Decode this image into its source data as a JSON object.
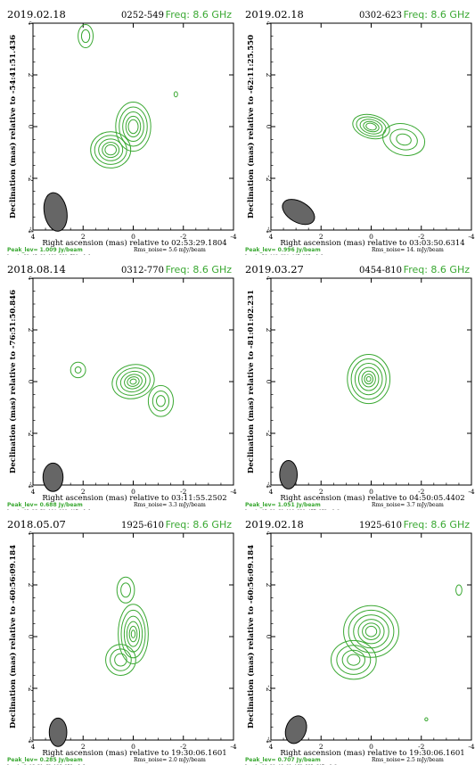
{
  "chart_data": [
    {
      "type": "contour",
      "date": "2019.02.18",
      "source": "0252-549",
      "freq": "Freq: 8.6 GHz",
      "ylabel": "Declination (mas) relative to -54:41:51.436",
      "xlabel": "Right ascension (mas) relative to 02:53:29.1804",
      "peak": "Peak_lev=   1.009 Jy/beam",
      "rms": "Rms_noise=   5.6 mJy/beam",
      "levels": "Levels:  32,  45,  90, 180, 360, 730 mJy/beam",
      "xticks": [
        "4",
        "2",
        "0",
        "-2",
        "-4"
      ],
      "yticks": [
        "4",
        "2",
        "0",
        "-2",
        "-4"
      ],
      "xlim": [
        4,
        -4
      ],
      "ylim": [
        -4,
        4
      ],
      "beam": {
        "x": 3.1,
        "y": -3.3,
        "w": 0.45,
        "h": 0.75,
        "angle": -10
      },
      "components": [
        {
          "x": 0.0,
          "y": 0.0,
          "w": 0.7,
          "h": 0.95,
          "angle": 0,
          "levels": [
            1.0,
            0.8,
            0.6,
            0.42,
            0.28
          ]
        },
        {
          "x": 0.9,
          "y": -0.9,
          "w": 0.8,
          "h": 0.7,
          "angle": 0,
          "levels": [
            1.0,
            0.8,
            0.6,
            0.42,
            0.28
          ]
        },
        {
          "x": 1.9,
          "y": 3.5,
          "w": 0.3,
          "h": 0.45,
          "angle": 0,
          "levels": [
            1.0,
            0.55
          ]
        },
        {
          "x": -1.7,
          "y": 1.25,
          "w": 0.07,
          "h": 0.1,
          "angle": 0,
          "levels": [
            1.0
          ]
        }
      ]
    },
    {
      "type": "contour",
      "date": "2019.02.18",
      "source": "0302-623",
      "freq": "Freq: 8.6 GHz",
      "ylabel": "Declination (mas) relative to -62:11:25.550",
      "xlabel": "Right ascension (mas) relative to 03:03:50.6314",
      "peak": "Peak_lev=   0.996 Jy/beam",
      "rms": "Rms_noise=   14. mJy/beam",
      "levels": "Levels:  56, 112, 224, 447, 895 mJy/beam",
      "xticks": [
        "4",
        "2",
        "0",
        "-2",
        "-4"
      ],
      "yticks": [
        "4",
        "2",
        "0",
        "-2",
        "-4"
      ],
      "xlim": [
        4,
        -4
      ],
      "ylim": [
        -4,
        4
      ],
      "beam": {
        "x": 2.9,
        "y": -3.3,
        "w": 0.7,
        "h": 0.4,
        "angle": 30
      },
      "components": [
        {
          "x": 0.0,
          "y": 0.0,
          "w": 0.75,
          "h": 0.45,
          "angle": 15,
          "levels": [
            1.0,
            0.8,
            0.6,
            0.42,
            0.28
          ]
        },
        {
          "x": -1.3,
          "y": -0.5,
          "w": 0.85,
          "h": 0.6,
          "angle": 15,
          "levels": [
            1.0,
            0.65,
            0.35
          ]
        }
      ]
    },
    {
      "type": "contour",
      "date": "2018.08.14",
      "source": "0312-770",
      "freq": "Freq: 8.6 GHz",
      "ylabel": "Declination (mas) relative to -76:51:50.846",
      "xlabel": "Right ascension (mas) relative to 03:11:55.2502",
      "peak": "Peak_lev=   0.688 Jy/beam",
      "rms": "Rms_noise=   3.3 mJy/beam",
      "levels": "Levels:  13,  26,  52, 104, 208, 417 mJy/beam",
      "xticks": [
        "4",
        "2",
        "0",
        "-2",
        "-4"
      ],
      "yticks": [
        "4",
        "2",
        "0",
        "-2",
        "-4"
      ],
      "xlim": [
        4,
        -4
      ],
      "ylim": [
        -4,
        4
      ],
      "beam": {
        "x": 3.2,
        "y": -3.7,
        "w": 0.4,
        "h": 0.55,
        "angle": 0
      },
      "components": [
        {
          "x": 0.0,
          "y": 0.0,
          "w": 0.85,
          "h": 0.65,
          "angle": -15,
          "levels": [
            1.0,
            0.8,
            0.6,
            0.42,
            0.28,
            0.15
          ]
        },
        {
          "x": -1.1,
          "y": -0.75,
          "w": 0.5,
          "h": 0.6,
          "angle": 0,
          "levels": [
            1.0,
            0.65,
            0.35
          ]
        },
        {
          "x": 2.2,
          "y": 0.45,
          "w": 0.3,
          "h": 0.3,
          "angle": 0,
          "levels": [
            1.0,
            0.4
          ]
        }
      ]
    },
    {
      "type": "contour",
      "date": "2019.03.27",
      "source": "0454-810",
      "freq": "Freq: 8.6 GHz",
      "ylabel": "Declination (mas) relative to -81:01:02.231",
      "xlabel": "Right ascension (mas) relative to 04:50:05.4402",
      "peak": "Peak_lev=   1.051 Jy/beam",
      "rms": "Rms_noise=   3.7 mJy/beam",
      "levels": "Levels:  15,  30,  60, 119, 238, 477, 953 mJy/beam",
      "xticks": [
        "4",
        "2",
        "0",
        "-2",
        "-4"
      ],
      "yticks": [
        "4",
        "2",
        "0",
        "-2",
        "-4"
      ],
      "xlim": [
        4,
        -4
      ],
      "ylim": [
        -4,
        4
      ],
      "beam": {
        "x": 3.3,
        "y": -3.6,
        "w": 0.35,
        "h": 0.55,
        "angle": 0
      },
      "components": [
        {
          "x": 0.1,
          "y": 0.1,
          "w": 0.85,
          "h": 0.95,
          "angle": 0,
          "levels": [
            1.0,
            0.82,
            0.64,
            0.47,
            0.32,
            0.2,
            0.1
          ]
        }
      ]
    },
    {
      "type": "contour",
      "date": "2018.05.07",
      "source": "1925-610",
      "freq": "Freq: 8.6 GHz",
      "ylabel": "Declination (mas) relative to -60:56:09.184",
      "xlabel": "Right ascension (mas) relative to 19:30:06.1601",
      "peak": "Peak_lev=   0.285 Jy/beam",
      "rms": "Rms_noise=   2.0 mJy/beam",
      "levels": "Levels:   8,  16,  31,  63, 126, 252 mJy/beam",
      "xticks": [
        "4",
        "2",
        "0",
        "-2",
        "-4"
      ],
      "yticks": [
        "4",
        "2",
        "0",
        "-2",
        "-4"
      ],
      "xlim": [
        4,
        -4
      ],
      "ylim": [
        -4,
        4
      ],
      "beam": {
        "x": 3.0,
        "y": -3.7,
        "w": 0.35,
        "h": 0.55,
        "angle": 0
      },
      "components": [
        {
          "x": 0.0,
          "y": 0.1,
          "w": 0.6,
          "h": 1.15,
          "angle": 0,
          "levels": [
            1.0,
            0.8,
            0.6,
            0.42,
            0.26,
            0.13
          ]
        },
        {
          "x": 0.5,
          "y": -0.9,
          "w": 0.6,
          "h": 0.6,
          "angle": 0,
          "levels": [
            1.0,
            0.7,
            0.4
          ]
        },
        {
          "x": 0.3,
          "y": 1.8,
          "w": 0.35,
          "h": 0.5,
          "angle": 0,
          "levels": [
            1.0,
            0.55
          ]
        }
      ]
    },
    {
      "type": "contour",
      "date": "2019.02.18",
      "source": "1925-610",
      "freq": "Freq: 8.6 GHz",
      "ylabel": "Declination (mas) relative to -60:56:09.184",
      "xlabel": "Right ascension (mas) relative to 19:30:06.1601",
      "peak": "Peak_lev=   0.707 Jy/beam",
      "rms": "Rms_noise=   2.5 mJy/beam",
      "levels": "Levels:  10,  20,  40,  81, 162, 323, 647 mJy/beam",
      "xticks": [
        "4",
        "2",
        "0",
        "-2",
        "-4"
      ],
      "yticks": [
        "4",
        "2",
        "0",
        "-2",
        "-4"
      ],
      "xlim": [
        4,
        -4
      ],
      "ylim": [
        -4,
        4
      ],
      "beam": {
        "x": 3.0,
        "y": -3.6,
        "w": 0.4,
        "h": 0.55,
        "angle": 20
      },
      "components": [
        {
          "x": 0.0,
          "y": 0.2,
          "w": 1.1,
          "h": 1.0,
          "angle": 0,
          "levels": [
            1.0,
            0.82,
            0.64,
            0.47,
            0.32,
            0.2
          ]
        },
        {
          "x": 0.7,
          "y": -0.9,
          "w": 0.9,
          "h": 0.75,
          "angle": 0,
          "levels": [
            1.0,
            0.75,
            0.5,
            0.28
          ]
        },
        {
          "x": -3.5,
          "y": 1.8,
          "w": 0.12,
          "h": 0.2,
          "angle": 0,
          "levels": [
            1.0
          ]
        },
        {
          "x": -2.2,
          "y": -3.2,
          "w": 0.06,
          "h": 0.06,
          "angle": 0,
          "levels": [
            1.0
          ]
        }
      ]
    }
  ]
}
